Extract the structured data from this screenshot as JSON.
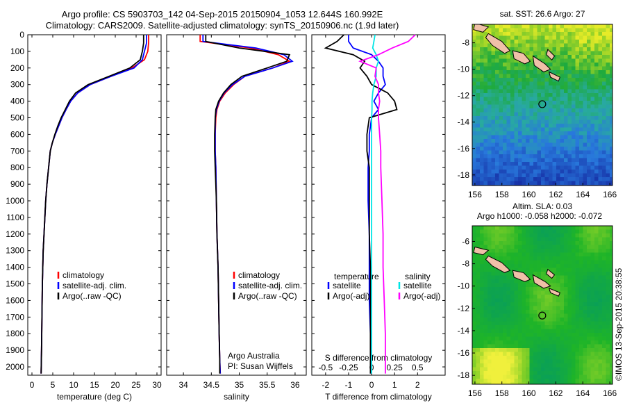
{
  "title_line1": "Argo profile: CS 5903703_142 04-Sep-2015 20150904_1053 12.644S 160.992E",
  "title_line2": "Climatology: CARS2009. Satellite-adjusted climatology: synTS_20150906.nc (1.9d later)",
  "colors": {
    "climatology": "#ff0000",
    "satellite": "#0000ff",
    "argo": "#000000",
    "sal_sat": "#00e5e5",
    "sal_argo": "#ff00ff",
    "land": "#f0c0a8"
  },
  "depth_ticks": [
    0,
    100,
    200,
    300,
    400,
    500,
    600,
    700,
    800,
    900,
    1000,
    1100,
    1200,
    1300,
    1400,
    1500,
    1600,
    1700,
    1800,
    1900,
    2000
  ],
  "legend": {
    "climatology": "climatology",
    "satellite": "satellite-adj. clim.",
    "argo": "Argo(..raw -QC)"
  },
  "diff_legend": {
    "temperature": "temperature",
    "salinity": "salinity",
    "satellite": "satellite",
    "argo": "Argo(-adj)"
  },
  "credit": {
    "line1": "Argo Australia",
    "line2": "PI: Susan Wijffels"
  },
  "footer": "©IMOS 13-Sep-2015 20:38:55",
  "chart_data": [
    {
      "type": "line",
      "xlabel": "temperature (deg C)",
      "xlim": [
        -1,
        31
      ],
      "xticks": [
        0,
        5,
        10,
        15,
        20,
        25,
        30
      ],
      "ylim": [
        0,
        2050
      ],
      "series": [
        {
          "name": "climatology",
          "x": [
            28.0,
            28.0,
            27.8,
            27.0,
            24.0,
            19.0,
            14.0,
            11.0,
            9.3,
            8.2,
            7.2,
            6.4,
            5.6,
            4.9,
            4.4,
            4.0,
            3.6,
            3.3,
            3.1,
            2.9,
            2.7,
            2.6,
            2.5,
            2.4,
            2.3,
            2.2
          ],
          "y": [
            0,
            50,
            100,
            150,
            200,
            250,
            300,
            350,
            400,
            450,
            500,
            550,
            600,
            650,
            700,
            800,
            900,
            1000,
            1100,
            1200,
            1300,
            1400,
            1500,
            1700,
            1900,
            2040
          ]
        },
        {
          "name": "satellite-adj. clim.",
          "x": [
            27.5,
            27.5,
            27.0,
            26.5,
            24.5,
            19.0,
            14.0,
            11.0,
            9.3,
            8.2,
            7.2,
            6.4,
            5.6,
            4.9,
            4.4,
            4.0,
            3.6,
            3.3,
            3.1,
            2.9,
            2.7,
            2.6,
            2.5,
            2.4,
            2.3,
            2.2
          ],
          "y": [
            0,
            50,
            100,
            150,
            200,
            250,
            300,
            350,
            400,
            450,
            500,
            550,
            600,
            650,
            700,
            800,
            900,
            1000,
            1100,
            1200,
            1300,
            1400,
            1500,
            1700,
            1900,
            2040
          ]
        },
        {
          "name": "Argo(..raw -QC)",
          "x": [
            26.8,
            26.8,
            26.5,
            26.0,
            23.5,
            18.5,
            13.5,
            10.5,
            9.0,
            8.0,
            7.0,
            6.2,
            5.5,
            4.9,
            4.4,
            4.0,
            3.6,
            3.3,
            3.1,
            2.9,
            2.7,
            2.6,
            2.5,
            2.4,
            2.3,
            2.2
          ],
          "y": [
            0,
            50,
            100,
            150,
            200,
            250,
            300,
            350,
            400,
            450,
            500,
            550,
            600,
            650,
            700,
            800,
            900,
            1000,
            1100,
            1200,
            1300,
            1400,
            1500,
            1700,
            1900,
            2040
          ]
        }
      ]
    },
    {
      "type": "line",
      "xlabel": "salinity",
      "xlim": [
        33.7,
        36.2
      ],
      "xticks": [
        34,
        34.5,
        35,
        35.5,
        36
      ],
      "ylim": [
        0,
        2050
      ],
      "series": [
        {
          "name": "climatology",
          "x": [
            34.3,
            34.3,
            35.2,
            35.7,
            35.9,
            35.6,
            35.1,
            34.9,
            34.75,
            34.65,
            34.6,
            34.58,
            34.57,
            34.57,
            34.58,
            34.59,
            34.6,
            34.62,
            34.63,
            34.64,
            34.65,
            34.66
          ],
          "y": [
            0,
            40,
            80,
            120,
            160,
            200,
            250,
            300,
            350,
            400,
            450,
            500,
            600,
            700,
            800,
            1000,
            1200,
            1400,
            1600,
            1800,
            1950,
            2040
          ]
        },
        {
          "name": "satellite-adj. clim.",
          "x": [
            34.35,
            34.35,
            35.3,
            35.8,
            35.95,
            35.6,
            35.1,
            34.88,
            34.73,
            34.64,
            34.59,
            34.57,
            34.57,
            34.57,
            34.58,
            34.59,
            34.6,
            34.62,
            34.63,
            34.64,
            34.65,
            34.66
          ],
          "y": [
            0,
            40,
            80,
            120,
            160,
            200,
            250,
            300,
            350,
            400,
            450,
            500,
            600,
            700,
            800,
            1000,
            1200,
            1400,
            1600,
            1800,
            1950,
            2040
          ]
        },
        {
          "name": "Argo(..raw -QC)",
          "x": [
            34.4,
            34.4,
            35.0,
            35.9,
            35.85,
            35.5,
            35.05,
            34.85,
            34.72,
            34.63,
            34.58,
            34.57,
            34.56,
            34.56,
            34.57,
            34.59,
            34.6,
            34.62,
            34.63,
            34.64,
            34.65,
            34.65
          ],
          "y": [
            0,
            40,
            80,
            120,
            160,
            200,
            250,
            300,
            350,
            400,
            450,
            500,
            600,
            700,
            800,
            1000,
            1200,
            1400,
            1600,
            1800,
            1950,
            2040
          ]
        }
      ]
    },
    {
      "type": "line",
      "xlabel": "T difference from climatology",
      "xlabel2": "S difference from climatology",
      "xlim": [
        -2.6,
        3.2
      ],
      "xticks": [
        -2,
        -1,
        0,
        1,
        2
      ],
      "xticks2": [
        -0.5,
        -0.25,
        0,
        0.25,
        0.5
      ],
      "xticks2_labels": [
        "-0.5",
        "-0.25",
        "0",
        "0.25",
        "0.5"
      ],
      "ylim": [
        0,
        2050
      ],
      "series": [
        {
          "name": "temperature satellite",
          "x": [
            -1.0,
            -1.0,
            -0.8,
            0.0,
            0.3,
            0.5,
            0.5,
            0.6,
            0.3,
            0.1,
            0.3,
            0.0,
            -0.1,
            -0.1,
            -0.15,
            -0.15,
            -0.1,
            -0.1,
            -0.1,
            -0.05,
            -0.05
          ],
          "y": [
            0,
            40,
            80,
            120,
            160,
            200,
            250,
            300,
            350,
            400,
            450,
            500,
            600,
            700,
            800,
            1000,
            1200,
            1400,
            1600,
            1800,
            2040
          ]
        },
        {
          "name": "temperature Argo(-adj)",
          "x": [
            -1.2,
            -1.5,
            -2.0,
            -0.8,
            -0.3,
            -0.5,
            -0.2,
            0.0,
            0.7,
            1.0,
            1.1,
            -0.1,
            -0.2,
            -0.2,
            -0.1,
            -0.1,
            -0.1,
            -0.05,
            -0.05,
            -0.05,
            -0.05
          ],
          "y": [
            0,
            40,
            80,
            120,
            160,
            200,
            250,
            300,
            350,
            400,
            450,
            500,
            600,
            700,
            800,
            1000,
            1200,
            1400,
            1600,
            1800,
            2040
          ]
        },
        {
          "name": "salinity satellite",
          "x": [
            0.15,
            0.1,
            0.05,
            0.2,
            0.3,
            0.2,
            0.2,
            0.1,
            0.05,
            0.02,
            0.02,
            0.0,
            0.0,
            0.0,
            0.0,
            0.0,
            0.0,
            0.0,
            0.0,
            0.0,
            0.0
          ],
          "y": [
            0,
            40,
            80,
            120,
            160,
            200,
            250,
            300,
            350,
            400,
            450,
            500,
            600,
            700,
            800,
            1000,
            1200,
            1400,
            1600,
            1800,
            2040
          ]
        },
        {
          "name": "salinity Argo(-adj)",
          "x": [
            1.9,
            1.6,
            0.9,
            0.3,
            -0.5,
            0.2,
            0.15,
            0.3,
            0.3,
            0.35,
            0.3,
            0.3,
            0.35,
            0.4,
            0.4,
            0.45,
            0.5,
            0.5,
            0.55,
            0.6,
            0.6
          ],
          "y": [
            0,
            40,
            80,
            120,
            160,
            200,
            250,
            300,
            350,
            400,
            450,
            500,
            600,
            700,
            800,
            1000,
            1200,
            1400,
            1600,
            1800,
            2040
          ]
        }
      ]
    },
    {
      "type": "heatmap",
      "title": "sat. SST: 26.6  Argo: 27",
      "xlim": [
        155.8,
        166.2
      ],
      "ylim": [
        -18.8,
        -6.6
      ],
      "xticks": [
        156,
        158,
        160,
        162,
        164,
        166
      ],
      "yticks": [
        -8,
        -10,
        -12,
        -14,
        -16,
        -18
      ],
      "argo_position": {
        "lon": 160.992,
        "lat": -12.644
      }
    },
    {
      "type": "heatmap",
      "title": "Altim. SLA: 0.03",
      "subtitle": "Argo h1000: -0.058  h2000: -0.072",
      "xlim": [
        155.8,
        166.2
      ],
      "ylim": [
        -18.8,
        -4.6
      ],
      "xticks": [
        156,
        158,
        160,
        162,
        164,
        166
      ],
      "yticks": [
        -6,
        -8,
        -10,
        -12,
        -14,
        -16,
        -18
      ],
      "argo_position": {
        "lon": 160.992,
        "lat": -12.644
      }
    }
  ]
}
